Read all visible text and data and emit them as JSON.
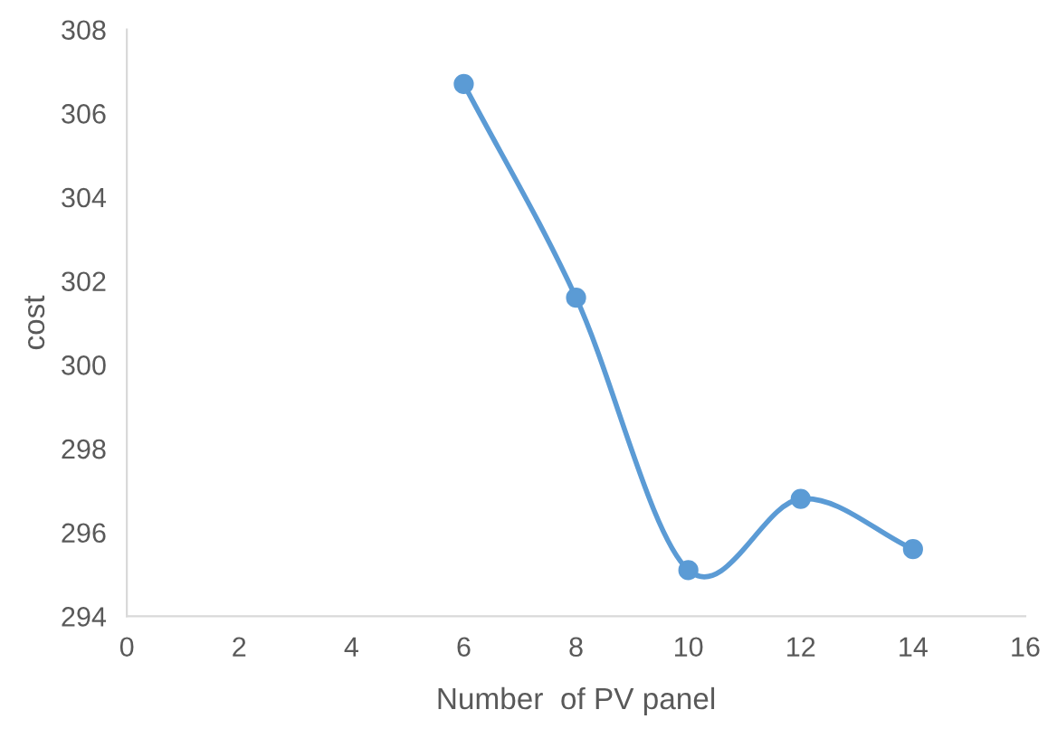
{
  "chart_data": {
    "type": "line",
    "xlabel": "Number  of PV panel",
    "ylabel": "cost",
    "x": [
      6,
      8,
      10,
      12,
      14
    ],
    "series": [
      {
        "color": "#5b9bd5",
        "values": [
          306.7,
          301.6,
          295.1,
          296.8,
          295.6
        ]
      }
    ],
    "xlim": [
      0,
      16
    ],
    "xticks": [
      0,
      2,
      4,
      6,
      8,
      10,
      12,
      14,
      16
    ],
    "ylim": [
      294,
      308
    ],
    "yticks": [
      294,
      296,
      298,
      300,
      302,
      304,
      306,
      308
    ],
    "marker": "circle",
    "line_style": "solid",
    "grid": false
  }
}
